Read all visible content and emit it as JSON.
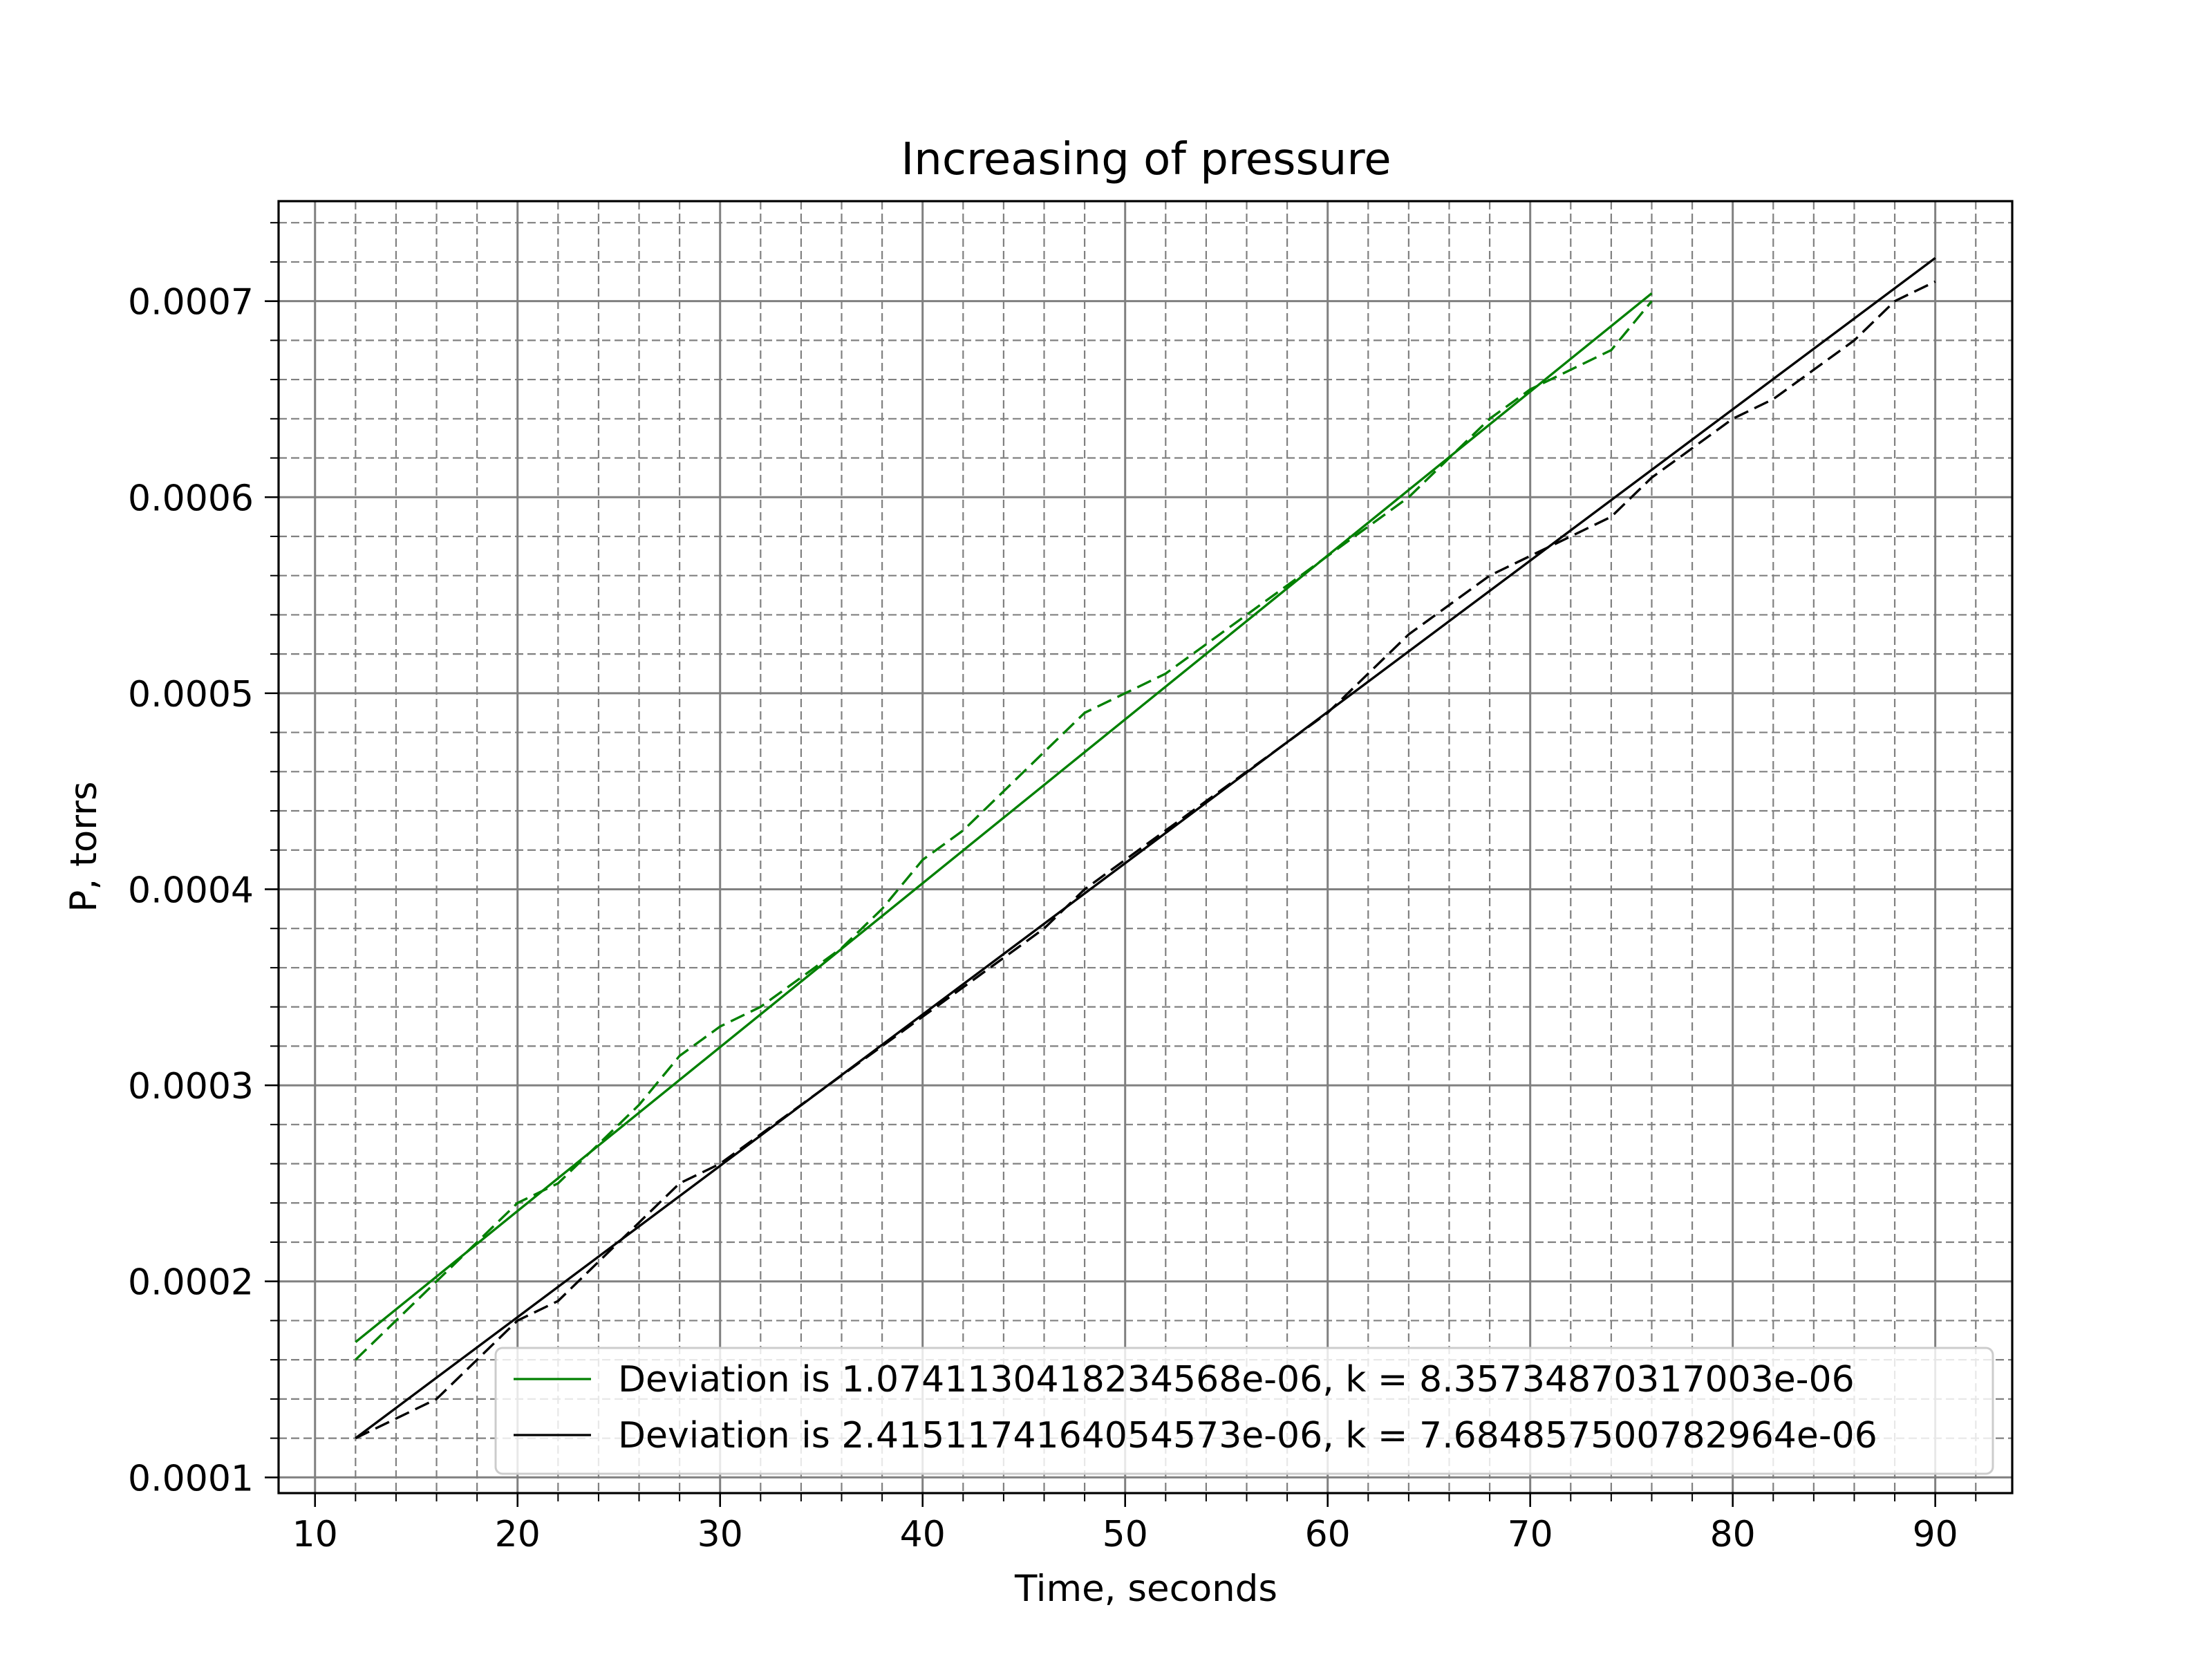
{
  "chart_data": {
    "type": "line",
    "title": "Increasing of pressure",
    "xlabel": "Time, seconds",
    "ylabel": "P, torrs",
    "xlim": [
      8.2,
      93.8
    ],
    "ylim": [
      9.2e-05,
      0.000751
    ],
    "xticks": [
      10,
      20,
      30,
      40,
      50,
      60,
      70,
      80,
      90
    ],
    "xtick_labels": [
      "10",
      "20",
      "30",
      "40",
      "50",
      "60",
      "70",
      "80",
      "90"
    ],
    "yticks": [
      0.0001,
      0.0002,
      0.0003,
      0.0004,
      0.0005,
      0.0006,
      0.0007
    ],
    "ytick_labels": [
      "0.0001",
      "0.0002",
      "0.0003",
      "0.0004",
      "0.0005",
      "0.0006",
      "0.0007"
    ],
    "x_minor_step": 2,
    "y_minor_step": 2e-05,
    "grid": true,
    "legend_position": "lower-right",
    "series": [
      {
        "name": "Deviation is 1.0741130418234568e-06, k = 8.35734870317003e-06",
        "color": "#008000",
        "style": "solid",
        "x": [
          12,
          76
        ],
        "y": [
          0.000169,
          0.000704
        ]
      },
      {
        "color": "#008000",
        "style": "dashed",
        "x": [
          12,
          14,
          16,
          18,
          20,
          22,
          24,
          26,
          28,
          30,
          32,
          34,
          36,
          38,
          40,
          42,
          44,
          46,
          48,
          50,
          52,
          54,
          56,
          58,
          60,
          62,
          64,
          66,
          68,
          70,
          72,
          74,
          76
        ],
        "y": [
          0.00016,
          0.00018,
          0.0002,
          0.00022,
          0.00024,
          0.00025,
          0.00027,
          0.00029,
          0.000315,
          0.00033,
          0.00034,
          0.000355,
          0.00037,
          0.00039,
          0.000415,
          0.00043,
          0.00045,
          0.00047,
          0.00049,
          0.0005,
          0.00051,
          0.000525,
          0.00054,
          0.000555,
          0.00057,
          0.000585,
          0.0006,
          0.00062,
          0.00064,
          0.000655,
          0.000665,
          0.000675,
          0.0007
        ]
      },
      {
        "name": "Deviation is 2.4151174164054573e-06, k = 7.684857500782964e-06",
        "color": "#000000",
        "style": "solid",
        "x": [
          12,
          90
        ],
        "y": [
          0.00012,
          0.000722
        ]
      },
      {
        "color": "#000000",
        "style": "dashed",
        "x": [
          12,
          14,
          16,
          18,
          20,
          22,
          24,
          26,
          28,
          30,
          32,
          34,
          36,
          38,
          40,
          42,
          44,
          46,
          48,
          50,
          52,
          54,
          56,
          58,
          60,
          62,
          64,
          66,
          68,
          70,
          72,
          74,
          76,
          78,
          80,
          82,
          84,
          86,
          88,
          90
        ],
        "y": [
          0.00012,
          0.00013,
          0.00014,
          0.00016,
          0.00018,
          0.00019,
          0.00021,
          0.00023,
          0.00025,
          0.00026,
          0.000275,
          0.00029,
          0.000305,
          0.00032,
          0.000335,
          0.00035,
          0.000365,
          0.00038,
          0.0004,
          0.000415,
          0.00043,
          0.000445,
          0.00046,
          0.000475,
          0.00049,
          0.00051,
          0.00053,
          0.000545,
          0.00056,
          0.00057,
          0.00058,
          0.00059,
          0.00061,
          0.000625,
          0.00064,
          0.00065,
          0.000665,
          0.00068,
          0.0007,
          0.00071
        ]
      }
    ]
  }
}
